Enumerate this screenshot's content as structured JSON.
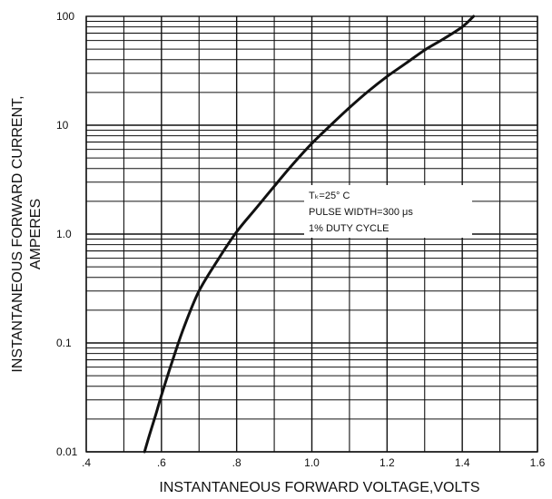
{
  "chart_data": {
    "type": "line",
    "title": "",
    "xlabel": "INSTANTANEOUS FORWARD VOLTAGE,VOLTS",
    "ylabel_line1": "INSTANTANEOUS FORWARD CURRENT,",
    "ylabel_line2": "AMPERES",
    "x_scale": "linear",
    "y_scale": "log",
    "xlim": [
      0.4,
      1.6
    ],
    "ylim": [
      0.01,
      100
    ],
    "grid": true,
    "x_ticks": [
      {
        "value": 0.4,
        "label": ".4"
      },
      {
        "value": 0.6,
        "label": ".6"
      },
      {
        "value": 0.8,
        "label": ".8"
      },
      {
        "value": 1.0,
        "label": "1.0"
      },
      {
        "value": 1.2,
        "label": "1.2"
      },
      {
        "value": 1.4,
        "label": "1.4"
      },
      {
        "value": 1.6,
        "label": "1.6"
      }
    ],
    "y_ticks": [
      {
        "value": 0.01,
        "label": "0.01"
      },
      {
        "value": 0.1,
        "label": "0.1"
      },
      {
        "value": 1,
        "label": "1.0"
      },
      {
        "value": 10,
        "label": "10"
      },
      {
        "value": 100,
        "label": "100"
      }
    ],
    "series": [
      {
        "x": [
          0.555,
          0.57,
          0.585,
          0.6,
          0.63,
          0.66,
          0.7,
          0.75,
          0.8,
          0.85,
          0.9,
          0.95,
          1.0,
          1.05,
          1.1,
          1.15,
          1.2,
          1.25,
          1.3,
          1.35,
          1.4,
          1.43
        ],
        "y": [
          0.01,
          0.015,
          0.022,
          0.033,
          0.07,
          0.14,
          0.3,
          0.58,
          1.05,
          1.7,
          2.75,
          4.4,
          6.8,
          10,
          14.5,
          20.5,
          28,
          37,
          49,
          62,
          80,
          100
        ]
      }
    ],
    "annotation": {
      "lines": [
        "Tₖ=25° C",
        "PULSE WIDTH=300 μs",
        "1% DUTY CYCLE"
      ]
    }
  }
}
